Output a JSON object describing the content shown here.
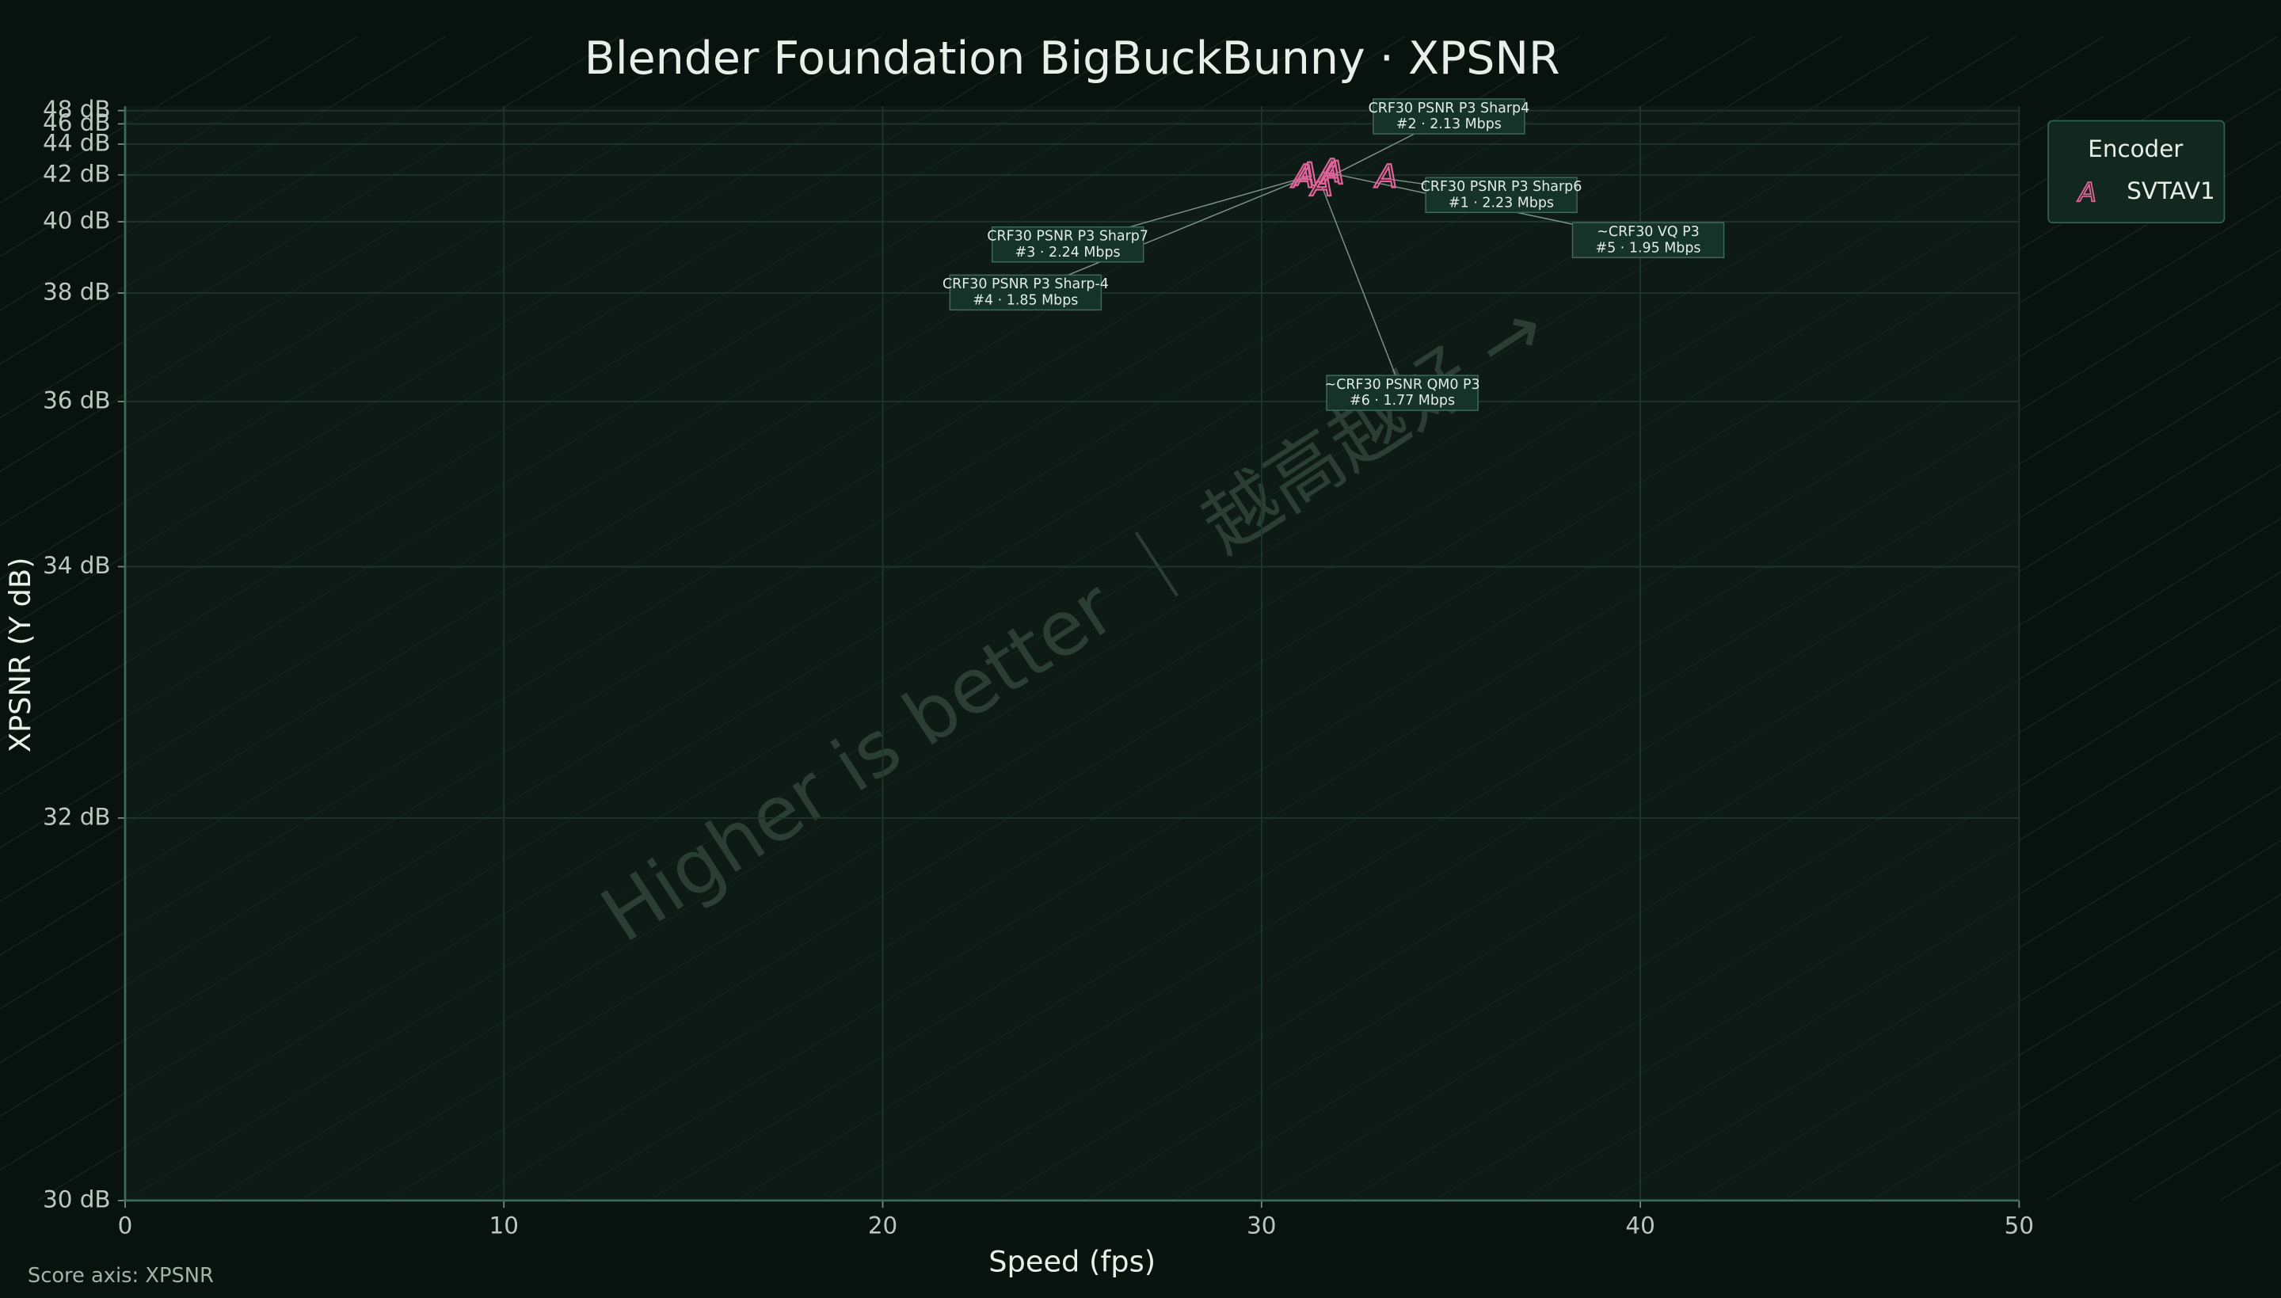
{
  "chart_data": {
    "type": "scatter",
    "title": "Blender Foundation BigBuckBunny · XPSNR",
    "x_label": "Speed (fps)",
    "y_label": "XPSNR (Y dB)",
    "footer": "Score axis: XPSNR",
    "watermark": "Higher is better ｜ 越高越好 →",
    "legend_title": "Encoder",
    "legend": "upper right outside",
    "grid": true,
    "xlim": [
      0,
      50
    ],
    "xticks": [
      0,
      10,
      20,
      30,
      40,
      50
    ],
    "ylim": [
      30,
      48
    ],
    "yticks": [
      {
        "value": 30,
        "label": "30 dB"
      },
      {
        "value": 32,
        "label": "32 dB"
      },
      {
        "value": 34,
        "label": "34 dB"
      },
      {
        "value": 36,
        "label": "36 dB"
      },
      {
        "value": 38,
        "label": "38 dB"
      },
      {
        "value": 40,
        "label": "40 dB"
      },
      {
        "value": 42,
        "label": "42 dB"
      },
      {
        "value": 44,
        "label": "44 dB"
      },
      {
        "value": 46,
        "label": "46 dB"
      },
      {
        "value": 48,
        "label": "48 dB"
      }
    ],
    "series": [
      {
        "name": "SVTAV1",
        "marker": "A",
        "color": "#e0649a",
        "x": [
          33.3,
          31.9,
          31.2,
          31.1,
          31.8,
          31.6
        ],
        "values": [
          41.8,
          42.0,
          41.9,
          41.8,
          42.1,
          41.4
        ],
        "annotations": [
          {
            "label": "CRF30 PSNR P3 Sharp6",
            "detail": "#1 · 2.23 Mbps"
          },
          {
            "label": "CRF30 PSNR P3 Sharp4",
            "detail": "#2 · 2.13 Mbps"
          },
          {
            "label": "CRF30 PSNR P3 Sharp7",
            "detail": "#3 · 2.24 Mbps"
          },
          {
            "label": "CRF30 PSNR P3 Sharp-4",
            "detail": "#4 · 1.85 Mbps"
          },
          {
            "label": "~CRF30 VQ P3",
            "detail": "#5 · 1.95 Mbps"
          },
          {
            "label": "~CRF30 PSNR QM0 P3",
            "detail": "#6 · 1.77 Mbps"
          }
        ]
      }
    ]
  }
}
